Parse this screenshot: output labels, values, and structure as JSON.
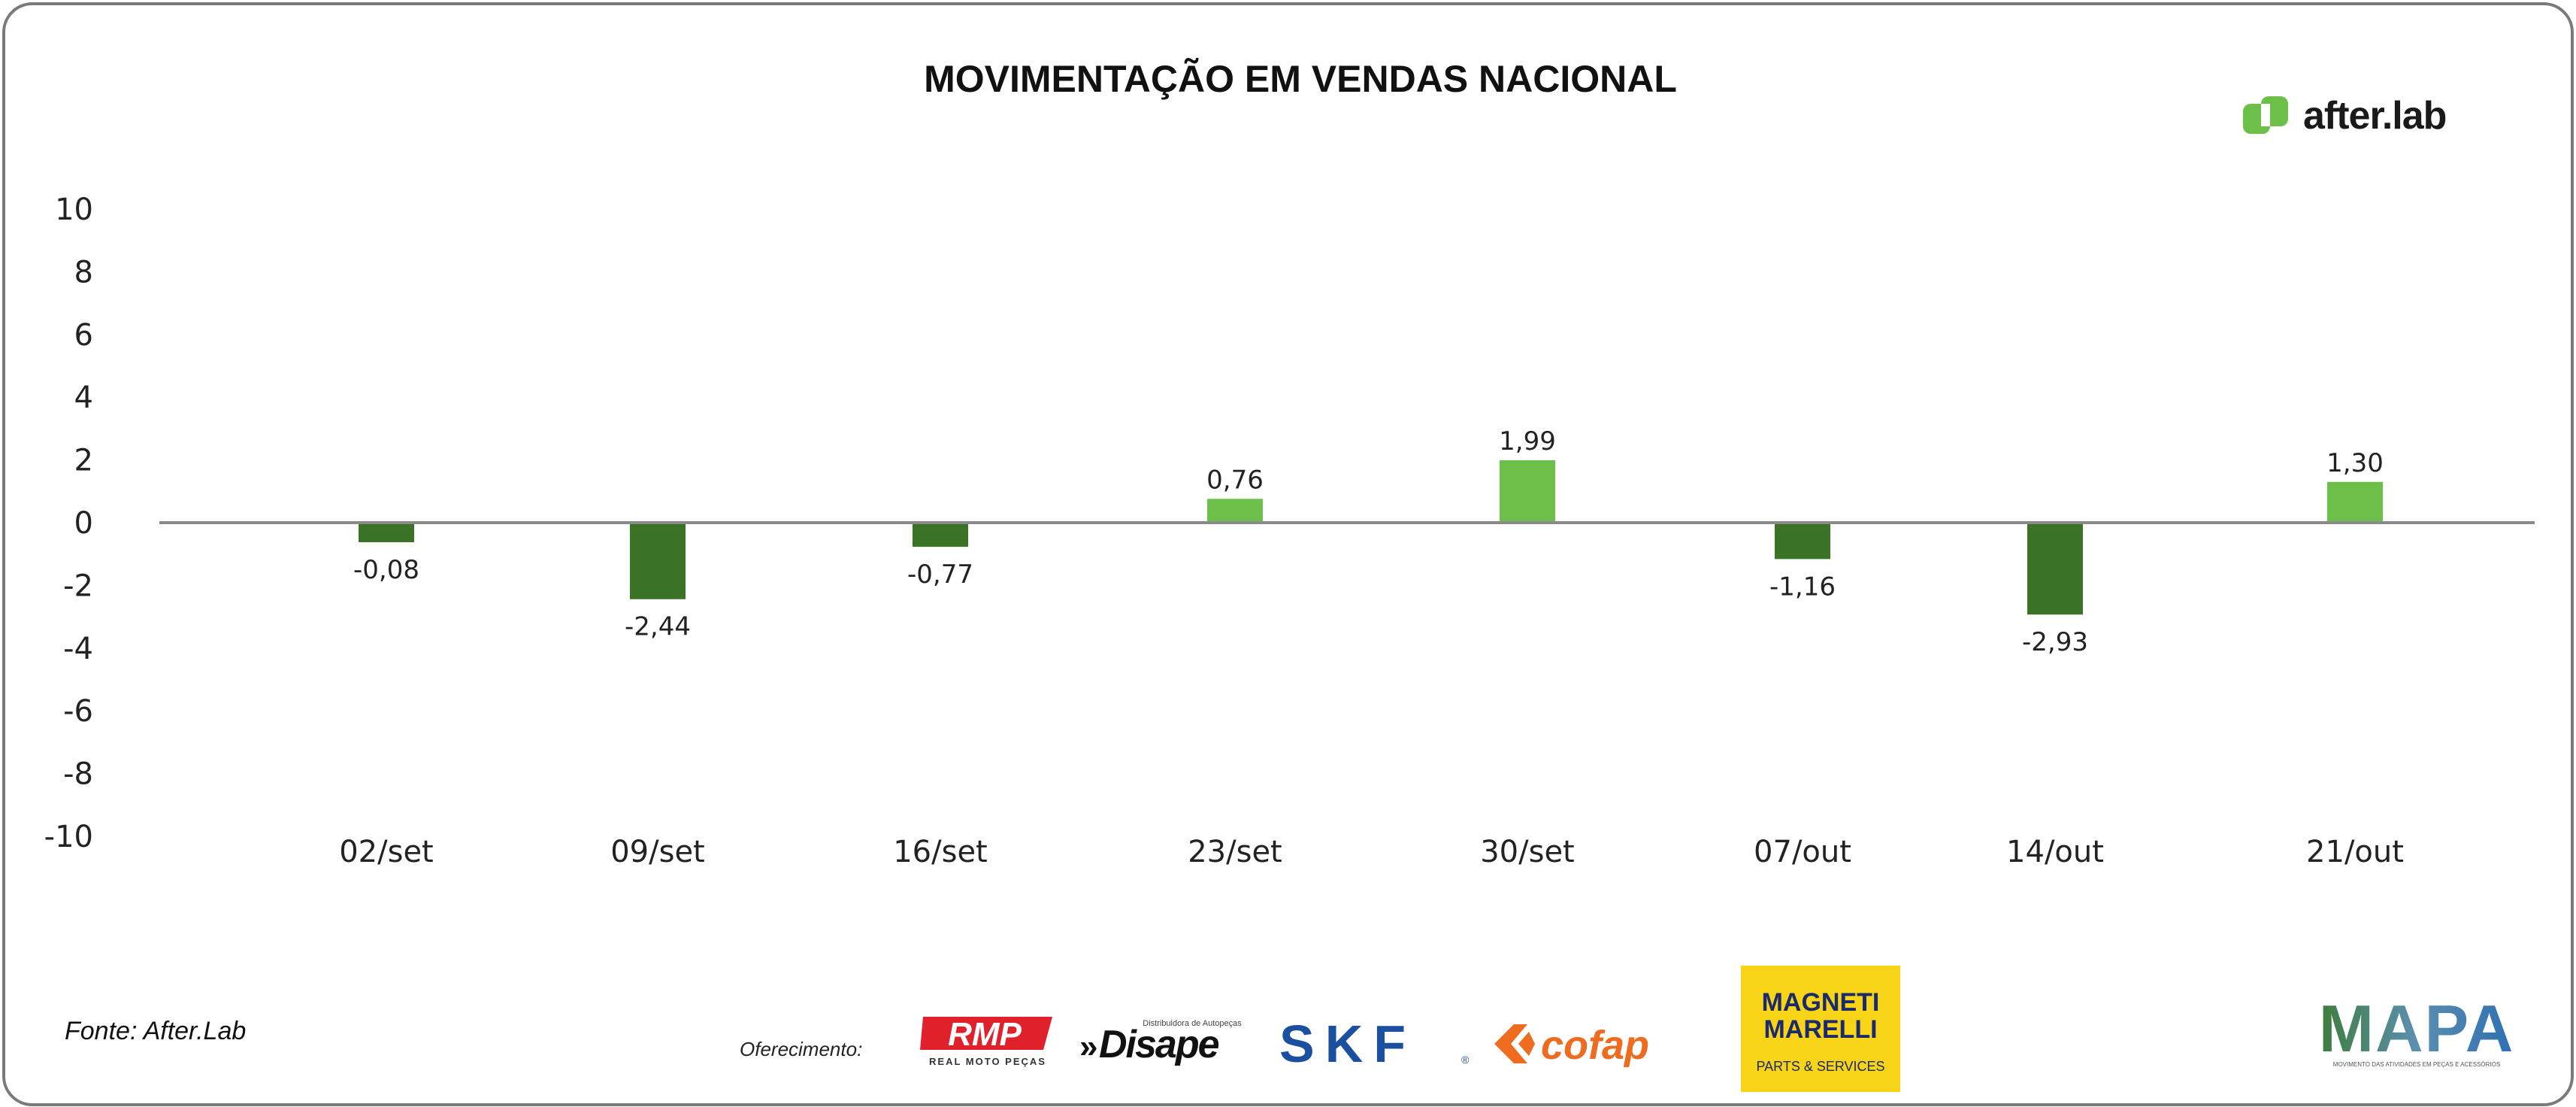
{
  "chart_data": {
    "type": "bar",
    "title": "MOVIMENTAÇÃO EM VENDAS NACIONAL",
    "categories": [
      "02/set",
      "09/set",
      "16/set",
      "23/set",
      "30/set",
      "07/out",
      "14/out",
      "21/out"
    ],
    "values": [
      -0.08,
      -2.44,
      -0.77,
      0.76,
      1.99,
      -1.16,
      -2.93,
      1.3
    ],
    "data_labels": [
      "-0,08",
      "-2,44",
      "-0,77",
      "0,76",
      "1,99",
      "-1,16",
      "-2,93",
      "1,30"
    ],
    "ylim": [
      -10,
      10
    ],
    "yticks": [
      "10",
      "8",
      "6",
      "4",
      "2",
      "0",
      "-2",
      "-4",
      "-6",
      "-8",
      "-10"
    ],
    "xlabel": "",
    "ylabel": "",
    "grid": false,
    "colors": {
      "positive": "#6cc04a",
      "negative": "#3a7226",
      "zero_line": "#8a8a8a"
    }
  },
  "brand": {
    "name": "after.lab",
    "icon": "after-lab-logo-icon",
    "color": "#6cc04a"
  },
  "source": "Fonte: After.Lab",
  "sponsors": {
    "label": "Oferecimento:",
    "logos": [
      {
        "name": "RMP",
        "subtitle": "REAL MOTO PEÇAS",
        "color": "#e0202a"
      },
      {
        "name": "Disape",
        "subtitle": "Distribuidora de Autopeças",
        "color": "#111111"
      },
      {
        "name": "SKF",
        "color": "#1b4fa0"
      },
      {
        "name": "cofap",
        "color": "#ef6b1f"
      },
      {
        "name": "MAGNETI MARELLI",
        "subtitle": "PARTS & SERVICES",
        "color": "#f7d417"
      }
    ]
  },
  "mapa": {
    "name": "MAPA",
    "subtitle": "MOVIMENTO DAS ATIVIDADES EM PEÇAS E ACESSÓRIOS"
  }
}
